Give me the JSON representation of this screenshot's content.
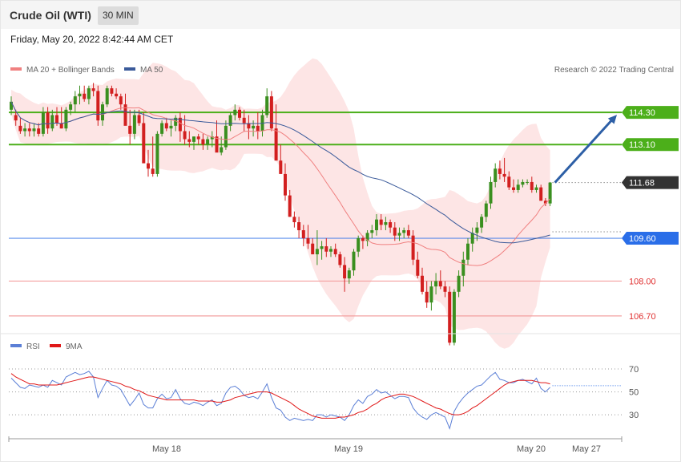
{
  "header": {
    "instrument": "Crude Oil (WTI)",
    "timeframe": "30 MIN",
    "datetime": "Friday, May 20, 2022 8:42:44 AM CET"
  },
  "legend": {
    "ma20": "MA 20 + Bollinger Bands",
    "ma50": "MA 50",
    "credit": "Research © 2022 Trading Central",
    "rsi": "RSI",
    "rsi_ma": "9MA"
  },
  "colors": {
    "bull": "#3a8f1f",
    "bear": "#d21f1f",
    "ma20": "#f08080",
    "ma50": "#3a5a9a",
    "band": "#fde0e0",
    "resistance": "#4caf1a",
    "pivot": "#2a6ee8",
    "support": "#f4a0a0",
    "last": "#333333",
    "arrow": "#2d5fa6",
    "rsi": "#5b7fd6",
    "rsi_ma": "#e01818"
  },
  "chart_data": [
    {
      "type": "candlestick",
      "ylim": [
        104.85,
        117.3
      ],
      "x_ticks": [
        "May 18",
        "May 19",
        "May 20",
        "May 27"
      ],
      "levels": [
        {
          "value": 114.3,
          "label": "114.30",
          "kind": "resistance"
        },
        {
          "value": 113.1,
          "label": "113.10",
          "kind": "resistance"
        },
        {
          "value": 111.68,
          "label": "111.68",
          "kind": "last"
        },
        {
          "value": 109.6,
          "label": "109.60",
          "kind": "pivot"
        },
        {
          "value": 108.0,
          "label": "108.00",
          "kind": "support"
        },
        {
          "value": 106.7,
          "label": "106.70",
          "kind": "support"
        }
      ],
      "candles_ohlc": [
        [
          114.4,
          114.9,
          114.2,
          114.7
        ],
        [
          114.2,
          114.4,
          113.8,
          114.0
        ],
        [
          113.8,
          114.1,
          113.5,
          113.6
        ],
        [
          113.6,
          113.9,
          113.4,
          113.7
        ],
        [
          113.7,
          113.9,
          113.4,
          113.6
        ],
        [
          113.6,
          113.9,
          113.4,
          113.7
        ],
        [
          113.7,
          113.9,
          113.4,
          113.5
        ],
        [
          113.5,
          114.5,
          113.4,
          114.3
        ],
        [
          114.3,
          114.5,
          113.5,
          113.7
        ],
        [
          113.7,
          114.4,
          113.6,
          114.2
        ],
        [
          114.2,
          114.5,
          113.8,
          113.9
        ],
        [
          113.9,
          114.5,
          113.7,
          113.7
        ],
        [
          113.7,
          114.5,
          113.6,
          114.4
        ],
        [
          114.4,
          114.7,
          114.2,
          114.6
        ],
        [
          114.6,
          115.1,
          114.3,
          114.9
        ],
        [
          114.9,
          115.3,
          114.6,
          115.0
        ],
        [
          115.0,
          115.3,
          114.7,
          114.8
        ],
        [
          114.8,
          115.3,
          114.6,
          115.2
        ],
        [
          115.2,
          115.4,
          114.9,
          115.1
        ],
        [
          115.1,
          115.3,
          113.8,
          114.0
        ],
        [
          114.0,
          114.7,
          113.8,
          114.6
        ],
        [
          114.6,
          115.3,
          114.5,
          115.2
        ],
        [
          115.2,
          115.3,
          114.9,
          115.0
        ],
        [
          115.0,
          115.2,
          114.8,
          114.9
        ],
        [
          114.9,
          115.0,
          114.4,
          114.6
        ],
        [
          114.6,
          115.0,
          114.1,
          113.8
        ],
        [
          113.8,
          114.4,
          113.1,
          113.5
        ],
        [
          113.5,
          114.4,
          113.3,
          114.2
        ],
        [
          114.2,
          114.4,
          113.8,
          113.9
        ],
        [
          113.9,
          114.3,
          113.5,
          112.4
        ],
        [
          112.4,
          112.9,
          111.9,
          112.2
        ],
        [
          112.2,
          113.4,
          111.9,
          112.0
        ],
        [
          112.0,
          113.6,
          111.9,
          113.5
        ],
        [
          113.5,
          114.0,
          113.4,
          113.9
        ],
        [
          113.9,
          114.1,
          113.6,
          113.7
        ],
        [
          113.7,
          114.0,
          113.4,
          113.8
        ],
        [
          113.8,
          114.2,
          113.6,
          114.1
        ],
        [
          114.1,
          114.3,
          113.2,
          113.6
        ],
        [
          113.6,
          114.2,
          113.1,
          113.3
        ],
        [
          113.3,
          113.6,
          113.0,
          113.2
        ],
        [
          113.2,
          113.4,
          112.9,
          113.4
        ],
        [
          113.4,
          113.5,
          113.1,
          113.3
        ],
        [
          113.3,
          113.5,
          112.9,
          113.1
        ],
        [
          113.1,
          113.4,
          112.9,
          113.3
        ],
        [
          113.3,
          113.6,
          113.0,
          113.4
        ],
        [
          113.4,
          114.0,
          113.2,
          112.8
        ],
        [
          112.8,
          113.4,
          112.7,
          113.0
        ],
        [
          113.0,
          114.0,
          112.9,
          113.8
        ],
        [
          113.8,
          114.3,
          113.6,
          114.2
        ],
        [
          114.2,
          114.6,
          114.0,
          114.4
        ],
        [
          114.4,
          114.5,
          114.0,
          114.1
        ],
        [
          114.1,
          114.4,
          113.6,
          113.9
        ],
        [
          113.9,
          114.2,
          113.3,
          113.7
        ],
        [
          113.7,
          114.0,
          113.4,
          113.8
        ],
        [
          113.8,
          114.3,
          113.3,
          113.6
        ],
        [
          113.6,
          114.4,
          113.4,
          114.2
        ],
        [
          114.2,
          115.2,
          114.1,
          114.9
        ],
        [
          114.9,
          115.1,
          113.6,
          113.7
        ],
        [
          113.7,
          114.6,
          113.2,
          112.5
        ],
        [
          112.5,
          113.1,
          112.3,
          112.0
        ],
        [
          112.0,
          112.4,
          111.0,
          111.2
        ],
        [
          111.2,
          111.4,
          110.4,
          110.4
        ],
        [
          110.4,
          110.6,
          110.0,
          110.2
        ],
        [
          110.2,
          110.4,
          109.6,
          109.9
        ],
        [
          109.9,
          110.1,
          109.3,
          109.6
        ],
        [
          109.6,
          110.1,
          109.2,
          109.4
        ],
        [
          109.4,
          109.6,
          109.0,
          109.0
        ],
        [
          109.0,
          109.9,
          108.6,
          109.2
        ],
        [
          109.2,
          109.5,
          108.8,
          109.3
        ],
        [
          109.3,
          109.6,
          108.9,
          109.1
        ],
        [
          109.1,
          109.3,
          108.9,
          109.2
        ],
        [
          109.2,
          109.4,
          108.9,
          109.0
        ],
        [
          109.0,
          109.1,
          108.5,
          108.6
        ],
        [
          108.6,
          108.9,
          107.6,
          108.1
        ],
        [
          108.1,
          108.5,
          107.9,
          108.4
        ],
        [
          108.4,
          109.2,
          108.2,
          109.1
        ],
        [
          109.1,
          109.7,
          108.9,
          109.6
        ],
        [
          109.6,
          109.7,
          109.2,
          109.5
        ],
        [
          109.5,
          109.9,
          109.3,
          109.8
        ],
        [
          109.8,
          110.1,
          109.6,
          109.9
        ],
        [
          109.9,
          110.5,
          109.7,
          110.3
        ],
        [
          110.3,
          110.5,
          109.9,
          110.1
        ],
        [
          110.1,
          110.4,
          109.9,
          110.2
        ],
        [
          110.2,
          110.3,
          109.8,
          110.0
        ],
        [
          110.0,
          110.2,
          109.5,
          109.7
        ],
        [
          109.7,
          110.0,
          109.5,
          109.8
        ],
        [
          109.8,
          110.0,
          109.6,
          109.9
        ],
        [
          109.9,
          110.1,
          109.6,
          109.7
        ],
        [
          109.7,
          109.9,
          108.6,
          108.8
        ],
        [
          108.8,
          109.1,
          108.1,
          108.2
        ],
        [
          108.2,
          108.5,
          107.5,
          107.6
        ],
        [
          107.6,
          108.0,
          107.0,
          107.2
        ],
        [
          107.2,
          108.0,
          106.9,
          107.8
        ],
        [
          107.8,
          108.3,
          107.5,
          108.0
        ],
        [
          108.0,
          108.4,
          107.7,
          107.8
        ],
        [
          107.8,
          108.0,
          107.4,
          107.6
        ],
        [
          107.6,
          107.8,
          105.6,
          105.7
        ],
        [
          105.7,
          107.7,
          105.6,
          107.6
        ],
        [
          107.6,
          108.4,
          107.4,
          108.2
        ],
        [
          108.2,
          109.1,
          107.8,
          108.8
        ],
        [
          108.8,
          109.6,
          108.6,
          109.4
        ],
        [
          109.4,
          110.0,
          109.1,
          109.8
        ],
        [
          109.8,
          110.2,
          109.5,
          110.0
        ],
        [
          110.0,
          110.5,
          109.8,
          110.4
        ],
        [
          110.4,
          111.0,
          110.2,
          110.9
        ],
        [
          110.9,
          111.9,
          110.7,
          111.7
        ],
        [
          111.7,
          112.4,
          111.5,
          112.2
        ],
        [
          112.2,
          112.5,
          111.8,
          112.0
        ],
        [
          112.0,
          112.6,
          111.7,
          111.9
        ],
        [
          111.9,
          112.1,
          111.4,
          111.5
        ],
        [
          111.5,
          111.8,
          111.3,
          111.4
        ],
        [
          111.4,
          111.8,
          111.3,
          111.6
        ],
        [
          111.6,
          111.8,
          111.5,
          111.7
        ],
        [
          111.7,
          111.8,
          111.6,
          111.7
        ],
        [
          111.7,
          111.9,
          111.3,
          111.4
        ],
        [
          111.4,
          111.6,
          111.3,
          111.5
        ],
        [
          111.5,
          111.6,
          111.0,
          111.0
        ],
        [
          111.0,
          111.1,
          110.8,
          110.9
        ],
        [
          110.9,
          111.7,
          110.8,
          111.68
        ]
      ]
    },
    {
      "type": "line",
      "title": "RSI",
      "ylim": [
        14,
        84
      ],
      "gridlines": [
        70,
        50,
        30
      ],
      "series": [
        {
          "name": "RSI",
          "values": [
            62,
            58,
            54,
            53,
            56,
            55,
            54,
            56,
            54,
            60,
            58,
            56,
            63,
            65,
            67,
            65,
            66,
            68,
            63,
            45,
            53,
            60,
            56,
            55,
            52,
            45,
            38,
            43,
            49,
            39,
            36,
            36,
            44,
            48,
            44,
            45,
            52,
            44,
            40,
            39,
            41,
            40,
            38,
            41,
            43,
            38,
            40,
            49,
            54,
            55,
            52,
            47,
            45,
            46,
            44,
            50,
            57,
            45,
            36,
            34,
            28,
            25,
            27,
            26,
            25,
            26,
            25,
            30,
            30,
            28,
            30,
            29,
            28,
            25,
            30,
            38,
            43,
            40,
            46,
            48,
            52,
            49,
            50,
            47,
            44,
            46,
            46,
            45,
            36,
            31,
            28,
            26,
            30,
            32,
            30,
            28,
            18,
            33,
            40,
            45,
            49,
            52,
            55,
            56,
            60,
            64,
            67,
            61,
            60,
            58,
            58,
            60,
            61,
            59,
            57,
            62,
            53,
            50,
            54
          ]
        },
        {
          "name": "9MA",
          "values": [
            66,
            63,
            61,
            59,
            57,
            57,
            56,
            56,
            56,
            56,
            56,
            57,
            58,
            59,
            60,
            61,
            62,
            63,
            63,
            62,
            61,
            60,
            59,
            58,
            57,
            55,
            54,
            52,
            51,
            49,
            47,
            46,
            45,
            44,
            43,
            43,
            43,
            43,
            43,
            43,
            43,
            42,
            42,
            42,
            42,
            41,
            41,
            42,
            43,
            45,
            46,
            47,
            48,
            49,
            50,
            50,
            50,
            49,
            47,
            45,
            43,
            41,
            38,
            35,
            33,
            31,
            29,
            28,
            27,
            27,
            27,
            27,
            28,
            28,
            29,
            30,
            32,
            33,
            35,
            38,
            40,
            43,
            45,
            46,
            47,
            48,
            48,
            47,
            46,
            44,
            42,
            40,
            38,
            36,
            35,
            33,
            31,
            30,
            30,
            31,
            33,
            36,
            38,
            41,
            44,
            47,
            50,
            53,
            56,
            58,
            59,
            60,
            60,
            60,
            60,
            59,
            58,
            58,
            57
          ]
        }
      ]
    }
  ]
}
